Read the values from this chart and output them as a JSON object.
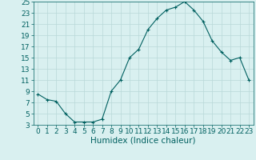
{
  "x": [
    0,
    1,
    2,
    3,
    4,
    5,
    6,
    7,
    8,
    9,
    10,
    11,
    12,
    13,
    14,
    15,
    16,
    17,
    18,
    19,
    20,
    21,
    22,
    23
  ],
  "y": [
    8.5,
    7.5,
    7.2,
    5.0,
    3.5,
    3.5,
    3.5,
    4.0,
    9.0,
    11.0,
    15.0,
    16.5,
    20.0,
    22.0,
    23.5,
    24.0,
    25.0,
    23.5,
    21.5,
    18.0,
    16.0,
    14.5,
    15.0,
    11.0
  ],
  "line_color": "#006060",
  "marker": "+",
  "bg_color": "#d9f0f0",
  "grid_color": "#b8d8d8",
  "tick_color": "#006060",
  "xlabel": "Humidex (Indice chaleur)",
  "ylim": [
    3,
    25
  ],
  "xlim": [
    -0.5,
    23.5
  ],
  "yticks": [
    3,
    5,
    7,
    9,
    11,
    13,
    15,
    17,
    19,
    21,
    23,
    25
  ],
  "xticks": [
    0,
    1,
    2,
    3,
    4,
    5,
    6,
    7,
    8,
    9,
    10,
    11,
    12,
    13,
    14,
    15,
    16,
    17,
    18,
    19,
    20,
    21,
    22,
    23
  ],
  "font_color": "#006060",
  "font_size": 6.5,
  "xlabel_fontsize": 7.5
}
